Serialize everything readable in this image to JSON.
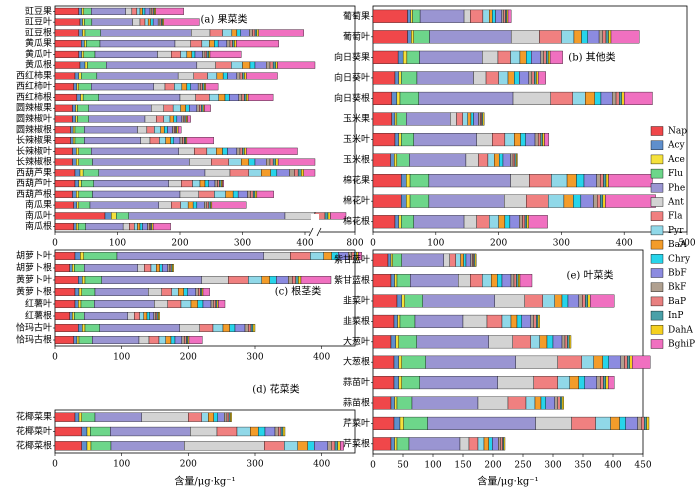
{
  "chart_data": {
    "type": "bar",
    "stacked": true,
    "orientation": "horizontal",
    "unit_label": "含量/μg·kg⁻¹",
    "legend": {
      "placement": "right",
      "items": [
        {
          "name": "Nap",
          "color": "#f0474a"
        },
        {
          "name": "Acy",
          "color": "#5f8fcc"
        },
        {
          "name": "Ace",
          "color": "#f5e13c"
        },
        {
          "name": "Flu",
          "color": "#6dd68a"
        },
        {
          "name": "Phe",
          "color": "#9a95d2"
        },
        {
          "name": "Ant",
          "color": "#d3d3d3"
        },
        {
          "name": "Fla",
          "color": "#f08080"
        },
        {
          "name": "Pyr",
          "color": "#90d8e8"
        },
        {
          "name": "BaA",
          "color": "#f39c2a"
        },
        {
          "name": "Chry",
          "color": "#27d4ea"
        },
        {
          "name": "BbF",
          "color": "#8c8be0"
        },
        {
          "name": "BkF",
          "color": "#b0a090"
        },
        {
          "name": "BaP",
          "color": "#e88080"
        },
        {
          "name": "InP",
          "color": "#4aa0a8"
        },
        {
          "name": "DahA",
          "color": "#f5d020"
        },
        {
          "name": "BghiP",
          "color": "#f070c0"
        }
      ]
    },
    "panels": [
      {
        "id": "a",
        "title": "(a) 果菜类",
        "xlim": [
          0,
          800
        ],
        "break": [
          400,
          700
        ],
        "xticks": [
          "0",
          "100",
          "200",
          "300",
          "400",
          "800"
        ],
        "categories": [
          "豇豆果",
          "豇豆叶",
          "豇豆根",
          "黄瓜果",
          "黄瓜叶",
          "黄瓜根",
          "西红柿果",
          "西红柿叶",
          "西红柿根",
          "圆辣椒果",
          "圆辣椒叶",
          "圆辣椒根",
          "长辣椒果",
          "长辣椒叶",
          "长辣椒根",
          "西葫芦果",
          "西葫芦叶",
          "西葫芦根",
          "南瓜果",
          "南瓜叶",
          "南瓜根"
        ],
        "values": [
          [
            38,
            5,
            3,
            12,
            55,
            10,
            8,
            5,
            4,
            4,
            8,
            3,
            2,
            2,
            2,
            45
          ],
          [
            40,
            4,
            3,
            12,
            65,
            12,
            8,
            5,
            4,
            4,
            8,
            3,
            2,
            2,
            2,
            57
          ],
          [
            38,
            6,
            4,
            25,
            145,
            30,
            20,
            15,
            8,
            6,
            14,
            5,
            4,
            3,
            3,
            72
          ],
          [
            42,
            5,
            3,
            22,
            120,
            25,
            18,
            12,
            8,
            6,
            14,
            5,
            4,
            3,
            3,
            68
          ],
          [
            38,
            5,
            3,
            18,
            100,
            22,
            15,
            10,
            8,
            5,
            12,
            4,
            3,
            3,
            2,
            50
          ],
          [
            40,
            8,
            4,
            30,
            145,
            30,
            25,
            18,
            12,
            8,
            18,
            6,
            5,
            4,
            3,
            45
          ],
          [
            32,
            6,
            4,
            25,
            130,
            25,
            22,
            15,
            10,
            7,
            15,
            5,
            4,
            3,
            3,
            50
          ],
          [
            30,
            5,
            3,
            20,
            100,
            18,
            15,
            12,
            8,
            6,
            12,
            4,
            3,
            3,
            2,
            20
          ],
          [
            35,
            6,
            4,
            25,
            130,
            25,
            22,
            15,
            10,
            7,
            15,
            5,
            4,
            3,
            3,
            40
          ],
          [
            28,
            5,
            3,
            18,
            100,
            20,
            15,
            12,
            8,
            6,
            12,
            4,
            3,
            3,
            2,
            10
          ],
          [
            28,
            5,
            3,
            18,
            90,
            18,
            12,
            10,
            6,
            5,
            8,
            3,
            2,
            2,
            2,
            5
          ],
          [
            25,
            4,
            3,
            15,
            85,
            15,
            12,
            10,
            6,
            5,
            8,
            3,
            2,
            2,
            2,
            5
          ],
          [
            25,
            4,
            3,
            15,
            90,
            15,
            15,
            10,
            8,
            5,
            10,
            4,
            3,
            2,
            2,
            43
          ],
          [
            28,
            6,
            4,
            20,
            140,
            25,
            20,
            15,
            10,
            8,
            15,
            5,
            4,
            3,
            3,
            82
          ],
          [
            28,
            6,
            4,
            22,
            155,
            35,
            28,
            20,
            12,
            10,
            18,
            6,
            5,
            4,
            4,
            90
          ],
          [
            32,
            8,
            5,
            25,
            170,
            40,
            30,
            20,
            15,
            10,
            20,
            8,
            6,
            5,
            4,
            62
          ],
          [
            32,
            6,
            4,
            20,
            120,
            20,
            18,
            12,
            8,
            6,
            10,
            4,
            3,
            3,
            2,
            2
          ],
          [
            28,
            6,
            4,
            22,
            140,
            30,
            25,
            18,
            12,
            8,
            15,
            5,
            4,
            3,
            3,
            27
          ],
          [
            30,
            5,
            3,
            18,
            110,
            20,
            15,
            12,
            8,
            6,
            12,
            4,
            3,
            3,
            2,
            55
          ],
          [
            80,
            10,
            8,
            20,
            250,
            140,
            50,
            30,
            25,
            20,
            40,
            15,
            12,
            10,
            8,
            52
          ],
          [
            30,
            4,
            3,
            12,
            60,
            10,
            8,
            5,
            4,
            4,
            8,
            3,
            2,
            2,
            2,
            28
          ]
        ]
      },
      {
        "id": "b",
        "title": "(b) 其他类",
        "xlim": [
          0,
          500
        ],
        "xticks": [
          "0",
          "100",
          "200",
          "300",
          "400",
          "500"
        ],
        "categories": [
          "葡萄果",
          "葡萄叶",
          "向日葵果",
          "向日葵叶",
          "向日葵根",
          "玉米果",
          "玉米叶",
          "玉米根",
          "棉花果",
          "棉花叶",
          "棉花根"
        ],
        "values": [
          [
            55,
            5,
            3,
            12,
            70,
            10,
            20,
            10,
            5,
            5,
            10,
            3,
            3,
            2,
            2,
            5
          ],
          [
            55,
            6,
            4,
            25,
            130,
            45,
            35,
            20,
            12,
            10,
            18,
            6,
            5,
            4,
            4,
            45
          ],
          [
            40,
            8,
            6,
            20,
            100,
            25,
            20,
            15,
            10,
            8,
            15,
            5,
            4,
            3,
            3,
            20
          ],
          [
            35,
            6,
            4,
            25,
            90,
            20,
            20,
            15,
            10,
            8,
            15,
            5,
            4,
            3,
            3,
            12
          ],
          [
            30,
            8,
            5,
            30,
            150,
            60,
            35,
            20,
            15,
            10,
            18,
            6,
            5,
            4,
            4,
            45
          ],
          [
            30,
            5,
            3,
            15,
            70,
            10,
            10,
            8,
            5,
            4,
            8,
            3,
            2,
            2,
            2,
            0
          ],
          [
            35,
            6,
            4,
            20,
            100,
            25,
            20,
            15,
            10,
            8,
            15,
            5,
            4,
            3,
            3,
            7
          ],
          [
            28,
            6,
            4,
            20,
            90,
            20,
            15,
            10,
            8,
            6,
            12,
            4,
            3,
            2,
            2,
            0
          ],
          [
            45,
            8,
            6,
            30,
            130,
            30,
            35,
            25,
            15,
            12,
            20,
            6,
            5,
            4,
            4,
            70
          ],
          [
            45,
            8,
            6,
            30,
            120,
            35,
            35,
            25,
            15,
            12,
            20,
            6,
            5,
            4,
            4,
            80
          ],
          [
            35,
            6,
            4,
            20,
            80,
            20,
            20,
            15,
            10,
            8,
            15,
            5,
            4,
            3,
            3,
            30
          ]
        ]
      },
      {
        "id": "c",
        "title": "(c) 根茎类",
        "xlim": [
          0,
          450
        ],
        "xticks": [
          "0",
          "100",
          "200",
          "300",
          "400"
        ],
        "categories": [
          "胡萝卜叶",
          "胡萝卜根",
          "黄萝卜叶",
          "黄萝卜根",
          "红薯叶",
          "红薯根",
          "恰玛古叶",
          "恰玛古根"
        ],
        "values": [
          [
            30,
            8,
            5,
            50,
            220,
            40,
            30,
            20,
            12,
            10,
            15,
            5,
            4,
            3,
            3,
            5
          ],
          [
            22,
            4,
            3,
            15,
            80,
            10,
            10,
            8,
            5,
            4,
            8,
            3,
            2,
            2,
            2,
            0
          ],
          [
            35,
            6,
            4,
            25,
            150,
            40,
            30,
            20,
            12,
            10,
            18,
            6,
            5,
            4,
            4,
            45
          ],
          [
            30,
            6,
            4,
            20,
            80,
            20,
            15,
            10,
            8,
            6,
            12,
            4,
            3,
            2,
            2,
            10
          ],
          [
            30,
            5,
            4,
            20,
            90,
            20,
            20,
            15,
            10,
            8,
            12,
            4,
            3,
            2,
            2,
            10
          ],
          [
            22,
            4,
            3,
            15,
            65,
            10,
            8,
            6,
            5,
            4,
            6,
            3,
            2,
            2,
            2,
            0
          ],
          [
            35,
            6,
            4,
            22,
            120,
            30,
            20,
            15,
            10,
            8,
            15,
            5,
            4,
            3,
            3,
            0
          ],
          [
            28,
            5,
            3,
            20,
            70,
            15,
            15,
            10,
            8,
            6,
            10,
            4,
            3,
            2,
            2,
            20
          ]
        ]
      },
      {
        "id": "d",
        "title": "(d) 花菜类",
        "xlim": [
          0,
          450
        ],
        "xticks": [
          "0",
          "100",
          "200",
          "300",
          "400"
        ],
        "categories": [
          "花椰菜果",
          "花椰菜叶",
          "花椰菜根"
        ],
        "values": [
          [
            30,
            6,
            4,
            20,
            70,
            70,
            20,
            10,
            8,
            6,
            10,
            4,
            3,
            2,
            2,
            0
          ],
          [
            40,
            8,
            5,
            30,
            120,
            40,
            30,
            20,
            12,
            10,
            15,
            5,
            4,
            3,
            3,
            0
          ],
          [
            40,
            8,
            6,
            30,
            110,
            120,
            30,
            20,
            15,
            10,
            20,
            6,
            5,
            4,
            4,
            5
          ]
        ]
      },
      {
        "id": "e",
        "title": "(e) 叶菜类",
        "xlim": [
          0,
          450
        ],
        "xticks": [
          "0",
          "50",
          "100",
          "150",
          "200",
          "250",
          "300",
          "350",
          "400",
          "450"
        ],
        "categories": [
          "紫甘蓝叶",
          "紫甘蓝根",
          "韭菜叶",
          "韭菜根",
          "大葱叶",
          "大葱根",
          "蒜苗叶",
          "蒜苗根",
          "芹菜叶",
          "芹菜根"
        ],
        "values": [
          [
            25,
            5,
            3,
            15,
            70,
            10,
            10,
            8,
            5,
            4,
            8,
            3,
            2,
            2,
            2,
            0
          ],
          [
            30,
            6,
            4,
            22,
            80,
            20,
            20,
            15,
            10,
            8,
            15,
            5,
            4,
            3,
            3,
            20
          ],
          [
            40,
            8,
            5,
            30,
            120,
            50,
            30,
            20,
            12,
            10,
            18,
            6,
            5,
            4,
            4,
            40
          ],
          [
            35,
            6,
            4,
            25,
            80,
            40,
            25,
            15,
            10,
            8,
            15,
            5,
            4,
            3,
            3,
            0
          ],
          [
            30,
            8,
            5,
            30,
            120,
            40,
            30,
            15,
            12,
            10,
            15,
            5,
            4,
            3,
            3,
            0
          ],
          [
            35,
            8,
            5,
            40,
            150,
            70,
            40,
            20,
            15,
            10,
            20,
            6,
            5,
            4,
            4,
            30
          ],
          [
            35,
            8,
            5,
            30,
            130,
            60,
            40,
            20,
            15,
            10,
            20,
            6,
            5,
            4,
            4,
            10
          ],
          [
            30,
            6,
            4,
            25,
            110,
            50,
            30,
            15,
            10,
            8,
            15,
            5,
            4,
            3,
            3,
            0
          ],
          [
            35,
            10,
            6,
            40,
            180,
            60,
            40,
            25,
            15,
            10,
            20,
            6,
            5,
            4,
            4,
            0
          ],
          [
            30,
            6,
            4,
            20,
            85,
            15,
            15,
            10,
            8,
            6,
            10,
            4,
            3,
            2,
            2,
            0
          ]
        ]
      }
    ]
  }
}
